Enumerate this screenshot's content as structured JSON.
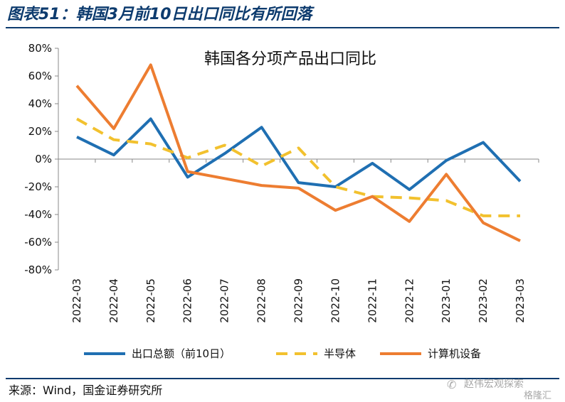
{
  "figure": {
    "title": "图表51：韩国3月前10日出口同比有所回落",
    "source": "来源：Wind，国金证券研究所",
    "watermark": {
      "icon": "wechat-icon",
      "line1": "赵伟宏观探索",
      "line2": "格隆汇"
    }
  },
  "chart_data": {
    "type": "line",
    "title": "韩国各分项产品出口同比",
    "xlabel": "",
    "ylabel": "",
    "ylim": [
      -80,
      80
    ],
    "yticks": [
      80,
      60,
      40,
      20,
      0,
      -20,
      -40,
      -60,
      -80
    ],
    "ytick_labels": [
      "80%",
      "60%",
      "40%",
      "20%",
      "0%",
      "-20%",
      "-40%",
      "-60%",
      "-80%"
    ],
    "x": [
      "2022-03",
      "2022-04",
      "2022-05",
      "2022-06",
      "2022-07",
      "2022-08",
      "2022-09",
      "2022-10",
      "2022-11",
      "2022-12",
      "2023-01",
      "2023-02",
      "2023-03"
    ],
    "grid": false,
    "legend_position": "bottom",
    "series": [
      {
        "name": "出口总额（前10日）",
        "color": "#1f6fb2",
        "dash": "solid",
        "values": [
          16,
          3,
          29,
          -13,
          4,
          23,
          -17,
          -20,
          -3,
          -22,
          -1,
          12,
          -16
        ]
      },
      {
        "name": "半导体",
        "color": "#f2c12e",
        "dash": "dashed",
        "values": [
          29,
          14,
          11,
          1,
          10,
          -5,
          8,
          -20,
          -27,
          -28,
          -30,
          -41,
          -41
        ]
      },
      {
        "name": "计算机设备",
        "color": "#ed7d31",
        "dash": "solid",
        "values": [
          53,
          22,
          68,
          -9,
          -14,
          -19,
          -21,
          -37,
          -27,
          -45,
          -11,
          -46,
          -59
        ]
      }
    ]
  }
}
